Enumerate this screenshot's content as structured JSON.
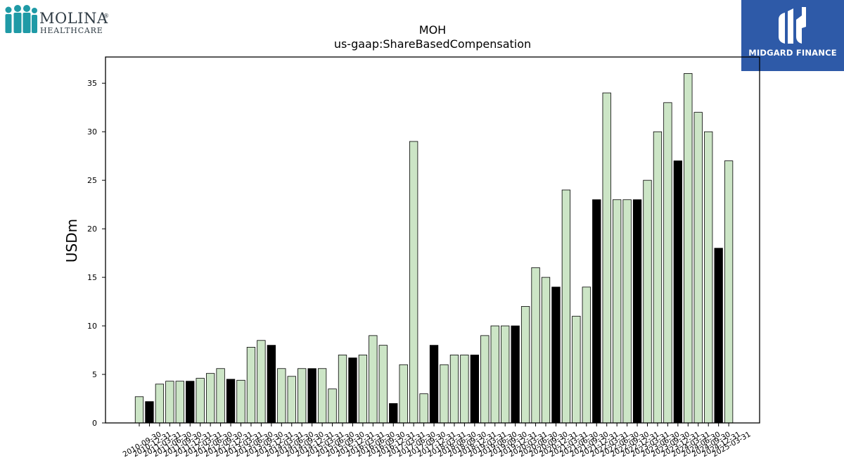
{
  "logos": {
    "left": {
      "name": "MOLINA",
      "registered": "®",
      "sub": "HEALTHCARE"
    },
    "right": {
      "caption": "MIDGARD FINANCE"
    }
  },
  "colors": {
    "bar_light": "#cce5c6",
    "bar_dark": "#000000",
    "edge": "#000000",
    "molina_teal": "#1f9aa6",
    "midgard_blue": "#2e5aa8"
  },
  "chart_data": {
    "type": "bar",
    "title": "MOH",
    "subtitle": "us-gaap:ShareBasedCompensation",
    "xlabel": "",
    "ylabel": "USDm",
    "ylim": [
      0,
      37.7
    ],
    "yticks": [
      0,
      5,
      10,
      15,
      20,
      25,
      30,
      35
    ],
    "grid": false,
    "categories": [
      "2010-09-30",
      "2010-12-31",
      "2011-03-31",
      "2011-06-30",
      "2011-09-30",
      "2011-12-31",
      "2012-03-31",
      "2012-06-30",
      "2012-09-30",
      "2012-12-31",
      "2013-03-31",
      "2013-06-30",
      "2013-09-30",
      "2013-12-31",
      "2014-03-31",
      "2014-06-30",
      "2014-09-30",
      "2014-12-31",
      "2015-03-31",
      "2015-06-30",
      "2015-09-30",
      "2015-12-31",
      "2016-03-31",
      "2016-06-30",
      "2016-09-30",
      "2016-12-31",
      "2017-03-31",
      "2017-06-30",
      "2017-09-30",
      "2017-12-31",
      "2018-03-31",
      "2018-06-30",
      "2018-09-30",
      "2018-12-31",
      "2019-03-31",
      "2019-06-30",
      "2019-09-30",
      "2019-12-31",
      "2020-03-31",
      "2020-06-30",
      "2020-09-30",
      "2020-12-31",
      "2021-03-31",
      "2021-06-30",
      "2021-09-30",
      "2021-12-31",
      "2022-03-31",
      "2022-06-30",
      "2022-09-30",
      "2022-12-31",
      "2023-03-31",
      "2023-06-30",
      "2023-09-30",
      "2023-12-31",
      "2024-03-31",
      "2024-06-30",
      "2024-09-30",
      "2024-12-31",
      "2025-03-31"
    ],
    "values": [
      2.7,
      2.2,
      4.0,
      4.3,
      4.3,
      4.3,
      4.6,
      5.1,
      5.6,
      4.5,
      4.4,
      7.8,
      8.5,
      8.0,
      5.6,
      4.8,
      5.6,
      5.6,
      5.6,
      3.5,
      7.0,
      6.7,
      7.0,
      9.0,
      8.0,
      2.0,
      6.0,
      29.0,
      3.0,
      8.0,
      6.0,
      7.0,
      7.0,
      7.0,
      9.0,
      10.0,
      10.0,
      10.0,
      12.0,
      16.0,
      15.0,
      14.0,
      24.0,
      11.0,
      14.0,
      23.0,
      34.0,
      23.0,
      23.0,
      23.0,
      25.0,
      30.0,
      33.0,
      27.0,
      36.0,
      32.0,
      30.0,
      18.0,
      27.0
    ],
    "highlighted": [
      false,
      true,
      false,
      false,
      false,
      true,
      false,
      false,
      false,
      true,
      false,
      false,
      false,
      true,
      false,
      false,
      false,
      true,
      false,
      false,
      false,
      true,
      false,
      false,
      false,
      true,
      false,
      false,
      false,
      true,
      false,
      false,
      false,
      true,
      false,
      false,
      false,
      true,
      false,
      false,
      false,
      true,
      false,
      false,
      false,
      true,
      false,
      false,
      false,
      true,
      false,
      false,
      false,
      true,
      false,
      false,
      false,
      true,
      false
    ]
  }
}
